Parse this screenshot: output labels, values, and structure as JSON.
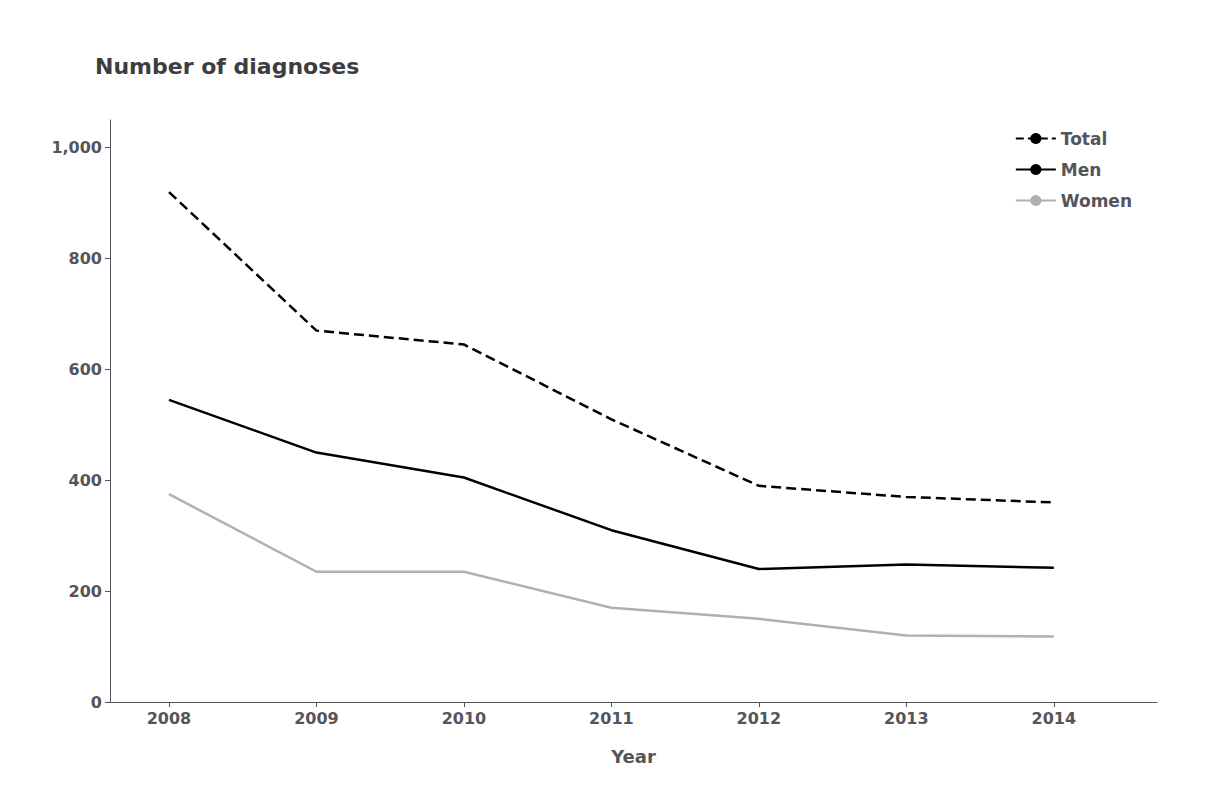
{
  "chart_data": {
    "type": "line",
    "title": "Number of diagnoses",
    "xlabel": "Year",
    "x": [
      2008,
      2009,
      2010,
      2011,
      2012,
      2013,
      2014
    ],
    "series": [
      {
        "name": "Total",
        "color": "#000000",
        "line_style": "dashed",
        "values": [
          920,
          670,
          645,
          510,
          390,
          370,
          360
        ]
      },
      {
        "name": "Men",
        "color": "#000000",
        "line_style": "solid",
        "values": [
          545,
          450,
          405,
          310,
          240,
          248,
          242
        ]
      },
      {
        "name": "Women",
        "color": "#b0b0b0",
        "line_style": "solid",
        "values": [
          375,
          235,
          235,
          170,
          150,
          120,
          118
        ]
      }
    ],
    "xlim": [
      2007.6,
      2014.7
    ],
    "xticks": [
      2008,
      2009,
      2010,
      2011,
      2012,
      2013,
      2014
    ],
    "ylim": [
      0,
      1050
    ],
    "yticks": [
      0,
      200,
      400,
      600,
      800,
      {
        "value": 1000,
        "label": "1,000"
      }
    ],
    "grid": false,
    "legend": "upper right"
  }
}
